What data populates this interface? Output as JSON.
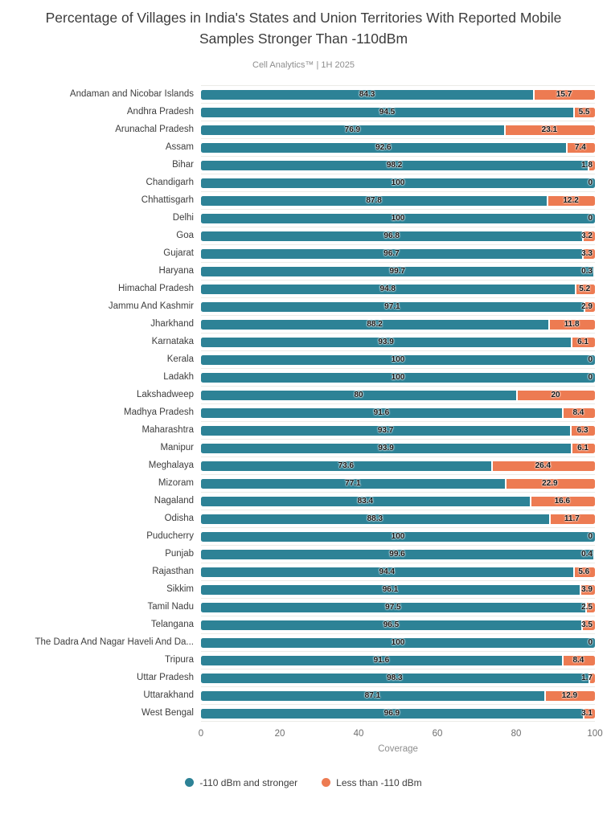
{
  "chart": {
    "title": "Percentage of Villages in India's States and Union Territories With Reported Mobile Samples Stronger Than -110dBm",
    "subtitle": "Cell Analytics™ | 1H 2025",
    "xlabel": "Coverage",
    "legend": [
      {
        "label": "-110 dBm and stronger",
        "color": "#2d8296"
      },
      {
        "label": "Less than -110 dBm",
        "color": "#ed7b52"
      }
    ]
  },
  "colors": {
    "strong_teal": "#2d8296",
    "weak_orange": "#ed7b52",
    "gridline": "#ebebe7",
    "title_text": "#3c3c3c",
    "muted_text": "#8e8e8e",
    "tick_text": "#6e6e6e",
    "value_text": "#161616"
  },
  "chart_data": {
    "type": "bar",
    "orientation": "horizontal",
    "stacked": true,
    "title": "Percentage of Villages in India's States and Union Territories With Reported Mobile Samples Stronger Than -110dBm",
    "subtitle": "Cell Analytics™ | 1H 2025",
    "xlabel": "Coverage",
    "ylabel": "",
    "xlim": [
      0,
      100
    ],
    "x_ticks": [
      0,
      20,
      40,
      60,
      80,
      100
    ],
    "grid": "horizontal-row-separators",
    "legend_position": "bottom",
    "value_labels": "inside-segments",
    "categories": [
      "Andaman and Nicobar Islands",
      "Andhra Pradesh",
      "Arunachal Pradesh",
      "Assam",
      "Bihar",
      "Chandigarh",
      "Chhattisgarh",
      "Delhi",
      "Goa",
      "Gujarat",
      "Haryana",
      "Himachal Pradesh",
      "Jammu And Kashmir",
      "Jharkhand",
      "Karnataka",
      "Kerala",
      "Ladakh",
      "Lakshadweep",
      "Madhya Pradesh",
      "Maharashtra",
      "Manipur",
      "Meghalaya",
      "Mizoram",
      "Nagaland",
      "Odisha",
      "Puducherry",
      "Punjab",
      "Rajasthan",
      "Sikkim",
      "Tamil Nadu",
      "Telangana",
      "The Dadra And Nagar Haveli And Da...",
      "Tripura",
      "Uttar Pradesh",
      "Uttarakhand",
      "West Bengal"
    ],
    "series": [
      {
        "name": "-110 dBm and stronger",
        "color": "#2d8296",
        "values": [
          84.3,
          94.5,
          76.9,
          92.6,
          98.2,
          100,
          87.8,
          100,
          96.8,
          96.7,
          99.7,
          94.8,
          97.1,
          88.2,
          93.9,
          100,
          100,
          80,
          91.6,
          93.7,
          93.9,
          73.6,
          77.1,
          83.4,
          88.3,
          100,
          99.6,
          94.4,
          96.1,
          97.5,
          96.5,
          100,
          91.6,
          98.3,
          87.1,
          96.9
        ]
      },
      {
        "name": "Less than -110 dBm",
        "color": "#ed7b52",
        "values": [
          15.7,
          5.5,
          23.1,
          7.4,
          1.8,
          0,
          12.2,
          0,
          3.2,
          3.3,
          0.3,
          5.2,
          2.9,
          11.8,
          6.1,
          0,
          0,
          20,
          8.4,
          6.3,
          6.1,
          26.4,
          22.9,
          16.6,
          11.7,
          0,
          0.4,
          5.6,
          3.9,
          2.5,
          3.5,
          0,
          8.4,
          1.7,
          12.9,
          3.1
        ]
      }
    ]
  }
}
